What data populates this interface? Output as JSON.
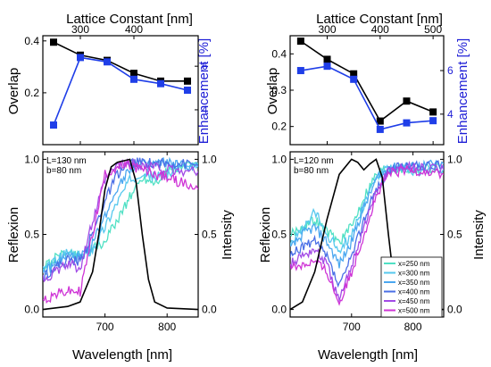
{
  "top_axis_label": "Lattice Constant [nm]",
  "overlap_label": "Overlap",
  "enhancement_label": "Enhancement [%]",
  "reflexion_label": "Reflexion",
  "intensity_label": "Intensity",
  "wavelength_label": "Wavelength [nm]",
  "colors": {
    "overlap": "#000000",
    "enhancement": "#1f3ee8",
    "emission": "#000000",
    "x250": "#4fe0c4",
    "x300": "#56c8ee",
    "x350": "#4aa7f0",
    "x400": "#4a6fe6",
    "x450": "#a24ae6",
    "x500": "#cf34d6"
  },
  "chart_data": [
    {
      "panel": "left-top",
      "type": "line",
      "xlabel": "Lattice Constant [nm]",
      "ylabel": "Overlap",
      "y2label": "Enhancement [%]",
      "xlim": [
        230,
        520
      ],
      "ylim": [
        0.0,
        0.42
      ],
      "y2lim": [
        2.4,
        7.4
      ],
      "xticks": [
        300,
        400
      ],
      "yticks": [
        0.2,
        0.4
      ],
      "y2ticks": [
        4,
        6
      ],
      "series": [
        {
          "name": "Overlap",
          "axis": "left",
          "x": [
            250,
            300,
            350,
            400,
            450,
            500
          ],
          "y": [
            0.395,
            0.345,
            0.325,
            0.275,
            0.245,
            0.245
          ]
        },
        {
          "name": "Enhancement",
          "axis": "right",
          "x": [
            250,
            300,
            350,
            400,
            450,
            500
          ],
          "y": [
            3.3,
            6.4,
            6.2,
            5.4,
            5.2,
            4.9
          ]
        }
      ]
    },
    {
      "panel": "right-top",
      "type": "line",
      "xlabel": "Lattice Constant [nm]",
      "ylabel": "Overlap",
      "y2label": "Enhancement [%]",
      "xlim": [
        230,
        520
      ],
      "ylim": [
        0.15,
        0.45
      ],
      "y2lim": [
        2.6,
        7.6
      ],
      "xticks": [
        300,
        400,
        500
      ],
      "yticks": [
        0.2,
        0.3,
        0.4
      ],
      "y2ticks": [
        4,
        6
      ],
      "series": [
        {
          "name": "Overlap",
          "axis": "left",
          "x": [
            250,
            300,
            350,
            400,
            450,
            500
          ],
          "y": [
            0.435,
            0.385,
            0.345,
            0.215,
            0.27,
            0.24
          ]
        },
        {
          "name": "Enhancement",
          "axis": "right",
          "x": [
            250,
            300,
            350,
            400,
            450,
            500
          ],
          "y": [
            6.0,
            6.2,
            5.6,
            3.3,
            3.6,
            3.7
          ]
        }
      ]
    },
    {
      "panel": "left-bottom",
      "type": "line",
      "xlabel": "Wavelength [nm]",
      "ylabel": "Reflexion",
      "y2label": "Intensity",
      "xlim": [
        600,
        850
      ],
      "ylim": [
        -0.05,
        1.05
      ],
      "xticks": [
        700,
        800
      ],
      "yticks": [
        0.0,
        0.5,
        1.0
      ],
      "y2ticks": [
        0.0,
        0.5,
        1.0
      ],
      "annotation": [
        "L=130 nm",
        "b=80 nm"
      ],
      "series": [
        {
          "name": "x=250 nm",
          "x": [
            600,
            620,
            640,
            660,
            680,
            700,
            720,
            740,
            760,
            780,
            800,
            820,
            850
          ],
          "y": [
            0.28,
            0.34,
            0.38,
            0.36,
            0.4,
            0.45,
            0.6,
            0.75,
            0.88,
            0.85,
            0.92,
            0.95,
            0.97
          ]
        },
        {
          "name": "x=300 nm",
          "x": [
            600,
            620,
            640,
            660,
            680,
            700,
            720,
            740,
            760,
            780,
            800,
            820,
            850
          ],
          "y": [
            0.26,
            0.32,
            0.38,
            0.35,
            0.4,
            0.55,
            0.72,
            0.86,
            0.92,
            0.88,
            0.9,
            0.95,
            0.96
          ]
        },
        {
          "name": "x=350 nm",
          "x": [
            600,
            620,
            640,
            660,
            680,
            700,
            720,
            740,
            760,
            780,
            800,
            820,
            850
          ],
          "y": [
            0.24,
            0.3,
            0.36,
            0.34,
            0.44,
            0.62,
            0.82,
            0.94,
            0.96,
            0.97,
            0.98,
            0.96,
            0.95
          ]
        },
        {
          "name": "x=400 nm",
          "x": [
            600,
            620,
            640,
            660,
            680,
            700,
            720,
            740,
            760,
            780,
            800,
            820,
            850
          ],
          "y": [
            0.22,
            0.28,
            0.33,
            0.32,
            0.5,
            0.72,
            0.9,
            0.97,
            0.98,
            0.97,
            0.97,
            0.97,
            0.96
          ]
        },
        {
          "name": "x=450 nm",
          "x": [
            600,
            620,
            640,
            660,
            680,
            700,
            720,
            740,
            760,
            780,
            800,
            820,
            850
          ],
          "y": [
            0.2,
            0.25,
            0.3,
            0.28,
            0.58,
            0.86,
            0.96,
            0.97,
            0.96,
            0.95,
            0.93,
            0.92,
            0.92
          ]
        },
        {
          "name": "x=500 nm",
          "x": [
            600,
            620,
            640,
            660,
            680,
            700,
            720,
            740,
            760,
            780,
            800,
            820,
            850
          ],
          "y": [
            0.06,
            0.1,
            0.12,
            0.12,
            0.5,
            0.9,
            0.95,
            0.96,
            0.93,
            0.9,
            0.88,
            0.85,
            0.8
          ]
        },
        {
          "name": "Emission",
          "axis": "right",
          "x": [
            600,
            640,
            660,
            680,
            690,
            700,
            710,
            720,
            730,
            740,
            750,
            760,
            770,
            780,
            800,
            850
          ],
          "y": [
            0.0,
            0.02,
            0.05,
            0.25,
            0.5,
            0.8,
            0.95,
            0.98,
            0.99,
            1.0,
            0.85,
            0.5,
            0.2,
            0.05,
            0.01,
            0.0
          ]
        }
      ]
    },
    {
      "panel": "right-bottom",
      "type": "line",
      "xlabel": "Wavelength [nm]",
      "ylabel": "Reflexion",
      "y2label": "Intensity",
      "xlim": [
        600,
        850
      ],
      "ylim": [
        -0.05,
        1.05
      ],
      "xticks": [
        700,
        800
      ],
      "yticks": [
        0.0,
        0.5,
        1.0
      ],
      "y2ticks": [
        0.0,
        0.5,
        1.0
      ],
      "annotation": [
        "L=120 nm",
        "b=80 nm"
      ],
      "legend": [
        "x=250 nm",
        "x=300 nm",
        "x=350 nm",
        "x=400 nm",
        "x=450 nm",
        "x=500 nm"
      ],
      "legend_position": "bottom-right",
      "series": [
        {
          "name": "x=250 nm",
          "x": [
            600,
            620,
            640,
            660,
            680,
            700,
            720,
            740,
            760,
            780,
            800,
            820,
            850
          ],
          "y": [
            0.5,
            0.55,
            0.6,
            0.52,
            0.45,
            0.55,
            0.75,
            0.9,
            0.95,
            0.94,
            0.93,
            0.94,
            0.95
          ]
        },
        {
          "name": "x=300 nm",
          "x": [
            600,
            620,
            640,
            660,
            680,
            700,
            720,
            740,
            760,
            780,
            800,
            820,
            850
          ],
          "y": [
            0.45,
            0.52,
            0.65,
            0.5,
            0.4,
            0.5,
            0.7,
            0.88,
            0.94,
            0.93,
            0.92,
            0.93,
            0.94
          ]
        },
        {
          "name": "x=350 nm",
          "x": [
            600,
            620,
            640,
            660,
            680,
            700,
            720,
            740,
            760,
            780,
            800,
            820,
            850
          ],
          "y": [
            0.4,
            0.5,
            0.55,
            0.45,
            0.3,
            0.45,
            0.68,
            0.86,
            0.94,
            0.95,
            0.95,
            0.96,
            0.97
          ]
        },
        {
          "name": "x=400 nm",
          "x": [
            600,
            620,
            640,
            660,
            680,
            700,
            720,
            740,
            760,
            780,
            800,
            820,
            850
          ],
          "y": [
            0.35,
            0.42,
            0.45,
            0.35,
            0.15,
            0.35,
            0.6,
            0.8,
            0.92,
            0.95,
            0.96,
            0.95,
            0.96
          ]
        },
        {
          "name": "x=450 nm",
          "x": [
            600,
            620,
            640,
            660,
            680,
            700,
            720,
            740,
            760,
            780,
            800,
            820,
            850
          ],
          "y": [
            0.3,
            0.36,
            0.4,
            0.3,
            0.05,
            0.3,
            0.55,
            0.78,
            0.92,
            0.95,
            0.95,
            0.94,
            0.93
          ]
        },
        {
          "name": "x=500 nm",
          "x": [
            600,
            620,
            640,
            660,
            680,
            700,
            720,
            740,
            760,
            780,
            800,
            820,
            850
          ],
          "y": [
            0.28,
            0.3,
            0.32,
            0.25,
            0.04,
            0.25,
            0.5,
            0.75,
            0.9,
            0.92,
            0.93,
            0.92,
            0.9
          ]
        },
        {
          "name": "Emission",
          "axis": "right",
          "x": [
            600,
            620,
            640,
            660,
            680,
            700,
            710,
            720,
            730,
            740,
            750,
            760,
            770,
            780,
            800,
            850
          ],
          "y": [
            0.0,
            0.05,
            0.25,
            0.6,
            0.9,
            1.0,
            0.98,
            0.93,
            0.97,
            1.0,
            0.88,
            0.5,
            0.15,
            0.02,
            0.0,
            0.0
          ]
        }
      ]
    }
  ]
}
